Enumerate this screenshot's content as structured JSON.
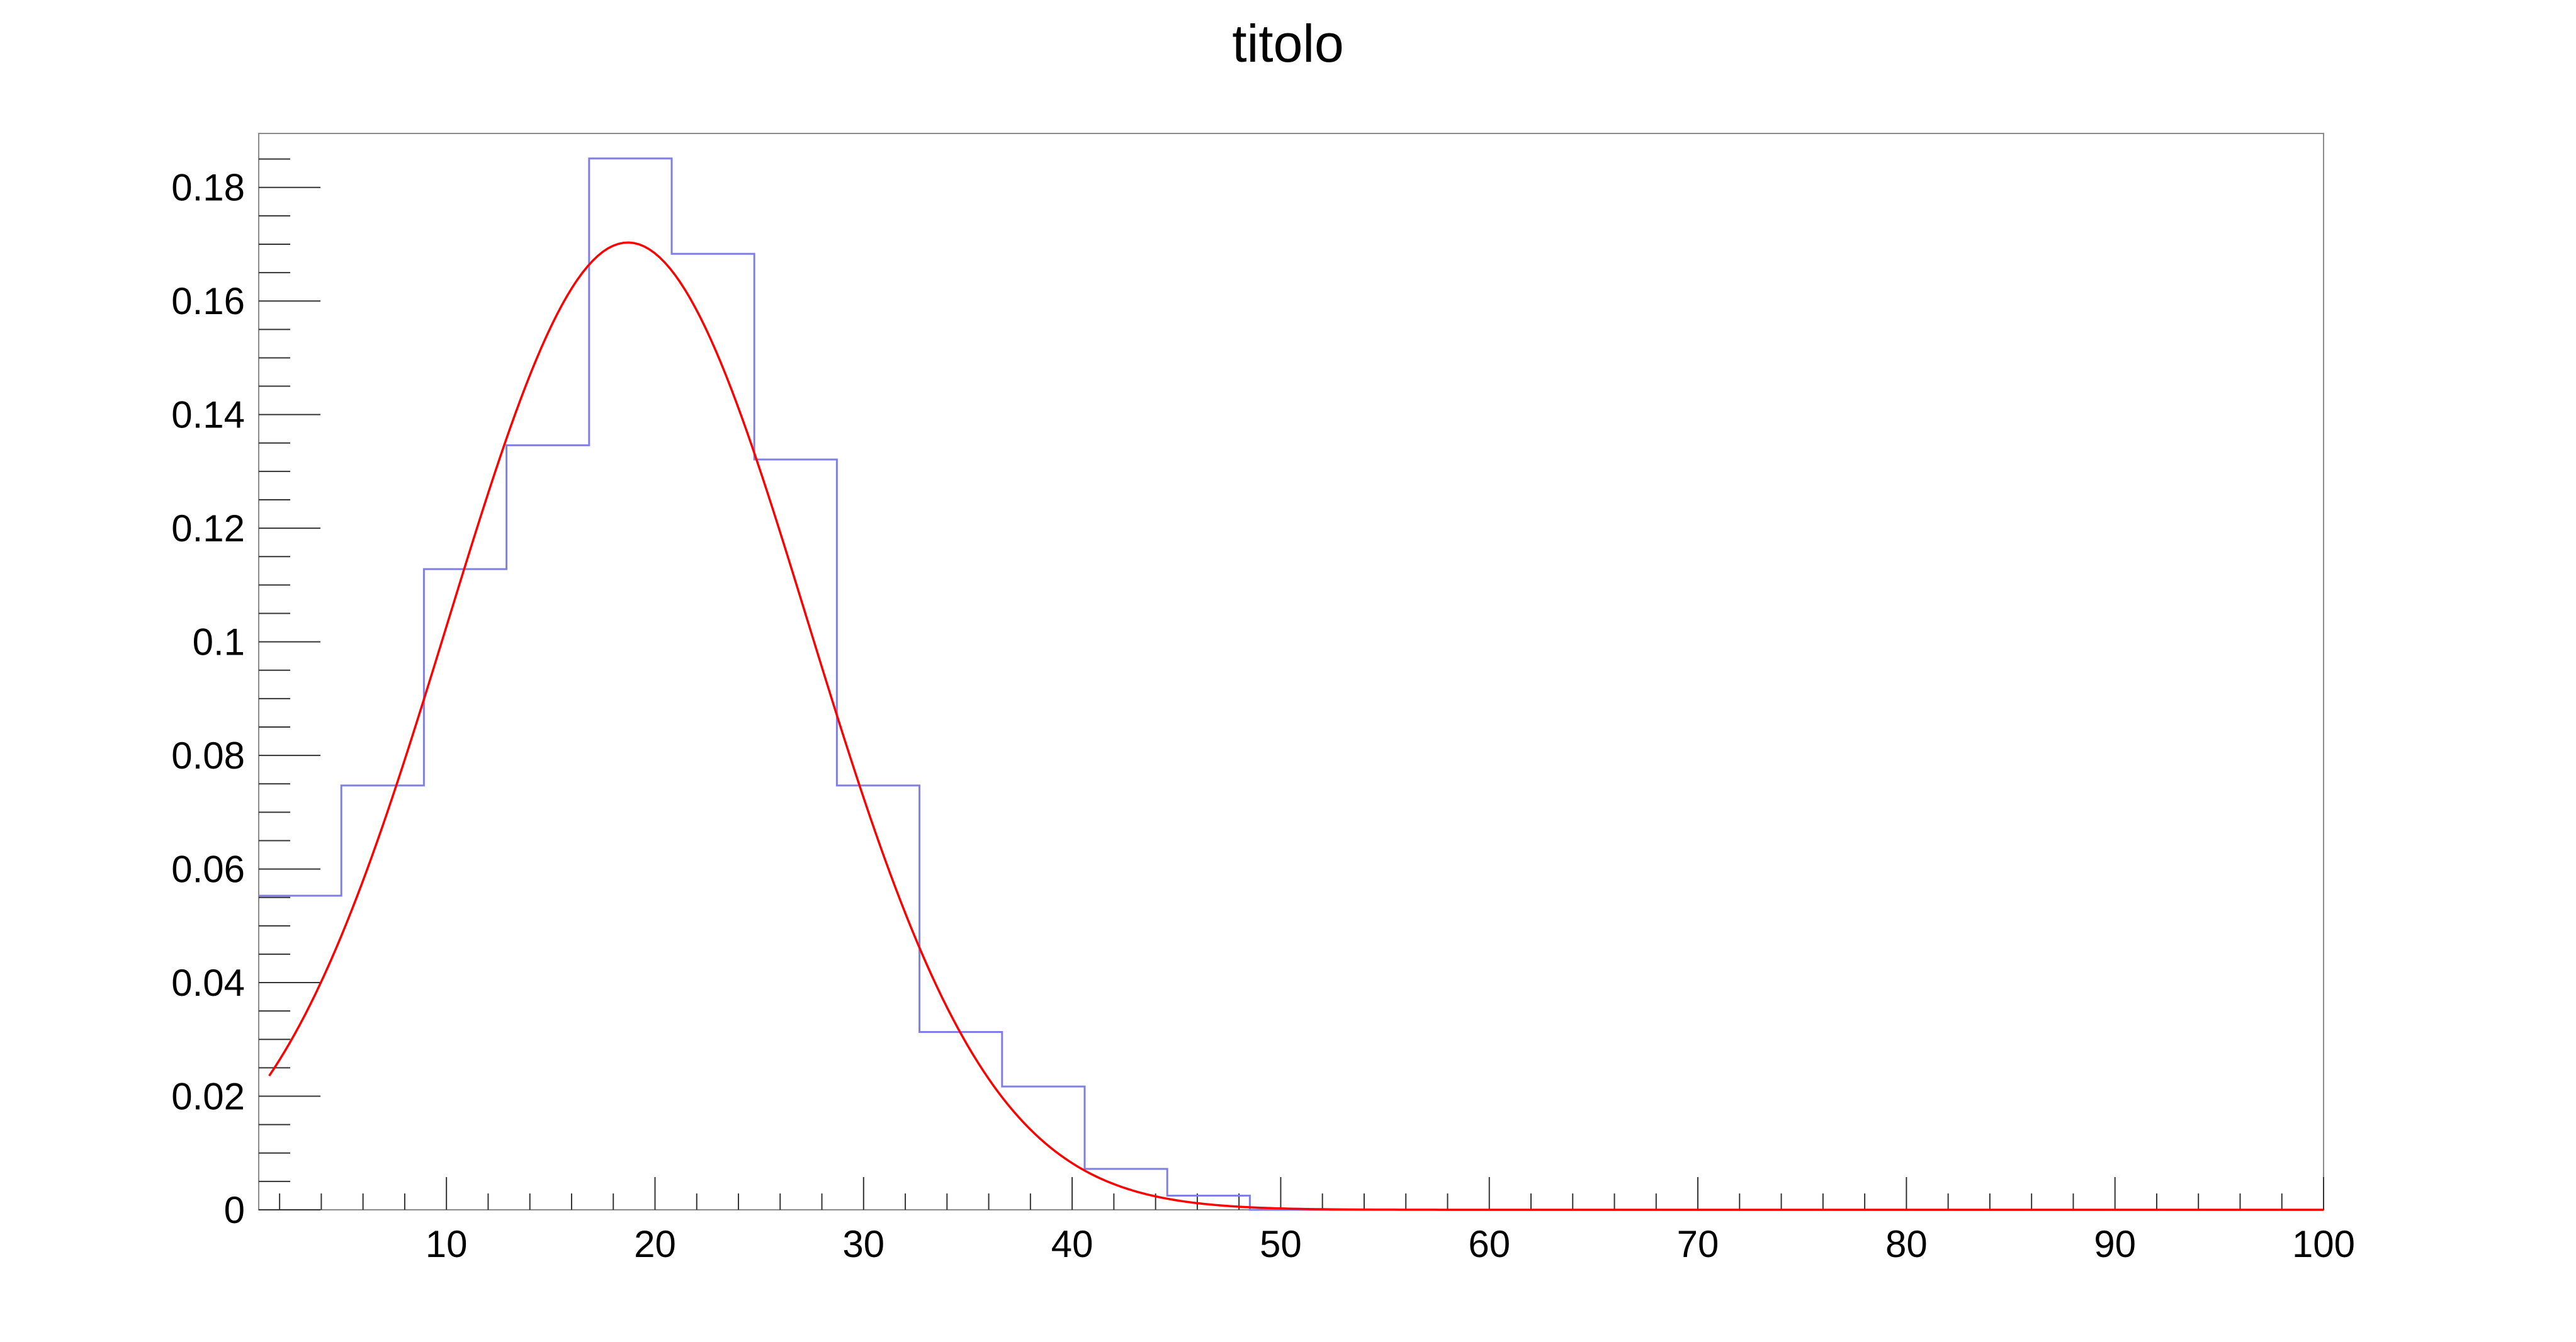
{
  "chart_data": {
    "type": "bar",
    "title": "titolo",
    "xlabel": "",
    "ylabel": "",
    "xlim": [
      1,
      100
    ],
    "ylim": [
      0,
      0.1895
    ],
    "x_ticks": [
      10,
      20,
      30,
      40,
      50,
      60,
      70,
      80,
      90,
      100
    ],
    "y_ticks": [
      0,
      0.02,
      0.04,
      0.06,
      0.08,
      0.1,
      0.12,
      0.14,
      0.16,
      0.18
    ],
    "grid": false,
    "legend": "none",
    "histogram": {
      "bin_edges": [
        1,
        4.96,
        8.92,
        12.88,
        16.84,
        20.8,
        24.76,
        28.72,
        32.68,
        36.64,
        40.6,
        44.56,
        48.52,
        52.48,
        56.44,
        60.4,
        64.36,
        68.32,
        72.28,
        76.24,
        80.2,
        84.16,
        88.12,
        92.08,
        96.04,
        100
      ],
      "values": [
        0.0553,
        0.0747,
        0.1128,
        0.1346,
        0.1851,
        0.1683,
        0.1321,
        0.0747,
        0.0313,
        0.0217,
        0.0072,
        0.0025,
        0,
        0,
        0,
        0,
        0,
        0,
        0,
        0,
        0,
        0,
        0,
        0,
        0
      ]
    },
    "fit": {
      "type": "gaussian",
      "constant": 0.1703,
      "mean": 18.7,
      "sigma": 8.65,
      "x_range": [
        1.5,
        100
      ]
    },
    "colors": {
      "histogram": "#8080e0",
      "fit": "#ff0000",
      "frame": "#8a8a8a",
      "ticks": "#333333"
    }
  }
}
